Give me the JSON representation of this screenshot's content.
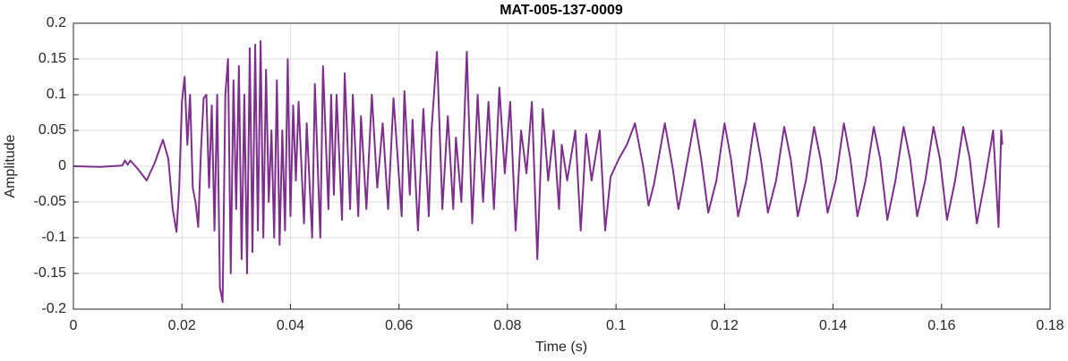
{
  "chart_data": {
    "type": "line",
    "title": "MAT-005-137-0009",
    "xlabel": "Time (s)",
    "ylabel": "Amplitude",
    "xlim": [
      0,
      0.18
    ],
    "xticks": [
      0,
      0.02,
      0.04,
      0.06,
      0.08,
      0.1,
      0.12,
      0.14,
      0.16,
      0.18
    ],
    "ylim": [
      -0.2,
      0.2
    ],
    "yticks": [
      0.2,
      0.15,
      0.1,
      0.05,
      0,
      -0.05,
      -0.1,
      -0.15,
      -0.2
    ],
    "grid": true,
    "x": [
      0,
      0.005,
      0.009,
      0.0095,
      0.01,
      0.0105,
      0.012,
      0.0135,
      0.015,
      0.0165,
      0.0175,
      0.0183,
      0.019,
      0.0195,
      0.02,
      0.0205,
      0.021,
      0.0215,
      0.022,
      0.0225,
      0.023,
      0.0235,
      0.024,
      0.0245,
      0.025,
      0.0255,
      0.026,
      0.0265,
      0.027,
      0.0275,
      0.028,
      0.0285,
      0.029,
      0.0295,
      0.03,
      0.0305,
      0.031,
      0.0315,
      0.032,
      0.0325,
      0.033,
      0.0335,
      0.034,
      0.0345,
      0.035,
      0.0355,
      0.036,
      0.0365,
      0.037,
      0.0375,
      0.038,
      0.0385,
      0.039,
      0.0395,
      0.04,
      0.0405,
      0.041,
      0.0415,
      0.0425,
      0.043,
      0.044,
      0.0445,
      0.0455,
      0.046,
      0.047,
      0.0475,
      0.048,
      0.0485,
      0.0495,
      0.05,
      0.051,
      0.0515,
      0.0525,
      0.053,
      0.054,
      0.055,
      0.056,
      0.057,
      0.058,
      0.059,
      0.0605,
      0.061,
      0.062,
      0.0625,
      0.0635,
      0.0645,
      0.0655,
      0.066,
      0.067,
      0.068,
      0.069,
      0.07,
      0.0705,
      0.0715,
      0.0725,
      0.0735,
      0.0745,
      0.0755,
      0.0765,
      0.0775,
      0.0785,
      0.0795,
      0.0805,
      0.0815,
      0.0825,
      0.0835,
      0.0845,
      0.0855,
      0.0865,
      0.0875,
      0.0885,
      0.0895,
      0.09,
      0.091,
      0.0925,
      0.0935,
      0.0945,
      0.0955,
      0.097,
      0.098,
      0.099,
      0.1005,
      0.102,
      0.1035,
      0.105,
      0.106,
      0.107,
      0.109,
      0.1105,
      0.1115,
      0.1125,
      0.1145,
      0.1157,
      0.117,
      0.1185,
      0.12,
      0.1212,
      0.1225,
      0.124,
      0.1255,
      0.1267,
      0.128,
      0.1295,
      0.131,
      0.1322,
      0.1335,
      0.135,
      0.1365,
      0.1377,
      0.139,
      0.1405,
      0.142,
      0.1432,
      0.1445,
      0.146,
      0.1475,
      0.1487,
      0.15,
      0.1515,
      0.153,
      0.1542,
      0.1555,
      0.157,
      0.1585,
      0.1597,
      0.161,
      0.1625,
      0.164,
      0.1652,
      0.1665,
      0.168,
      0.1695,
      0.1705,
      0.171,
      0.1712
    ],
    "series": [
      {
        "name": "Amplitude",
        "color": "#7e2f8e",
        "values": [
          0,
          -0.001,
          0.001,
          0.008,
          0.002,
          0.008,
          -0.005,
          -0.02,
          0.005,
          0.037,
          0.01,
          -0.06,
          -0.092,
          -0.03,
          0.09,
          0.125,
          0.03,
          0.1,
          -0.03,
          -0.05,
          -0.085,
          0.02,
          0.095,
          0.1,
          -0.03,
          0.085,
          -0.09,
          0.1,
          -0.17,
          -0.19,
          0.1,
          0.15,
          -0.15,
          0.12,
          -0.06,
          0.14,
          -0.13,
          0.1,
          -0.15,
          0.165,
          -0.12,
          0.17,
          -0.09,
          0.175,
          -0.1,
          0.135,
          -0.05,
          0.05,
          -0.1,
          0.12,
          -0.11,
          0.05,
          -0.09,
          0.15,
          -0.07,
          0.085,
          -0.02,
          0.09,
          -0.08,
          0.06,
          -0.1,
          0.115,
          -0.1,
          0.14,
          -0.06,
          0.1,
          -0.04,
          0.1,
          -0.075,
          0.13,
          -0.06,
          0.1,
          -0.07,
          0.07,
          -0.06,
          0.1,
          -0.03,
          0.06,
          -0.06,
          0.095,
          -0.07,
          0.105,
          -0.04,
          0.065,
          -0.09,
          0.08,
          -0.07,
          0.05,
          0.16,
          -0.06,
          0.07,
          -0.06,
          0.04,
          -0.05,
          0.16,
          -0.08,
          0.1,
          -0.05,
          0.09,
          -0.06,
          0.11,
          -0.01,
          0.09,
          -0.09,
          0.05,
          -0.01,
          0.09,
          -0.13,
          0.08,
          -0.02,
          0.05,
          -0.06,
          0.03,
          -0.02,
          0.05,
          -0.09,
          0.045,
          -0.02,
          0.05,
          -0.09,
          -0.015,
          0.01,
          0.03,
          0.06,
          0,
          -0.055,
          -0.025,
          0.06,
          -0.005,
          -0.06,
          -0.02,
          0.065,
          0.01,
          -0.065,
          -0.02,
          0.06,
          0.01,
          -0.07,
          -0.02,
          0.06,
          0.01,
          -0.065,
          -0.02,
          0.055,
          0.01,
          -0.07,
          -0.02,
          0.055,
          0.01,
          -0.065,
          -0.02,
          0.06,
          0.01,
          -0.07,
          -0.02,
          0.055,
          0.01,
          -0.075,
          -0.02,
          0.055,
          0.01,
          -0.07,
          -0.02,
          0.055,
          0.01,
          -0.075,
          -0.02,
          0.055,
          0.01,
          -0.08,
          -0.02,
          0.05,
          -0.085,
          0.05,
          0.03
        ]
      }
    ]
  }
}
